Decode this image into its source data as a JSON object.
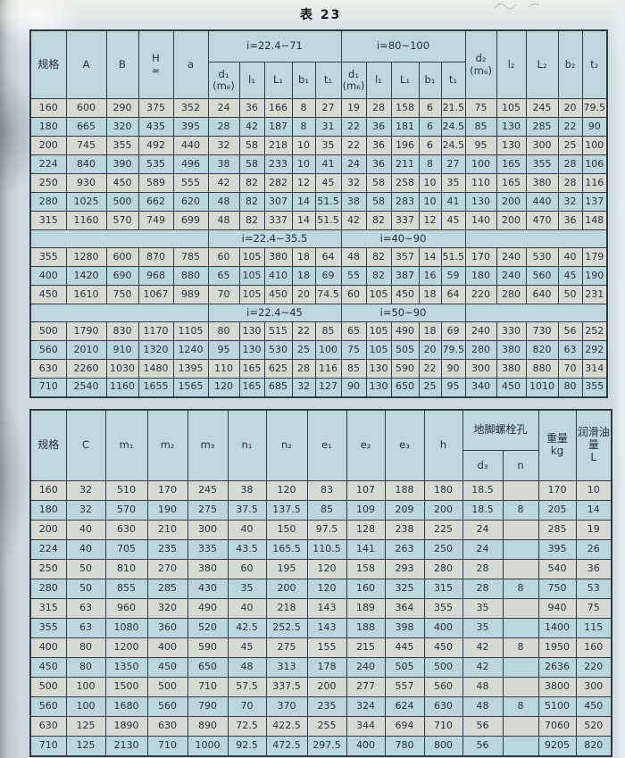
{
  "page": {
    "title": "表 23"
  },
  "colors": {
    "row_blue": "#bcd6e0",
    "row_grey": "#d6dad3",
    "header_blue": "#bfd8e0",
    "border": "#2e3a46",
    "paper": "#cfdce1",
    "ink": "#272f3b"
  },
  "table1": {
    "col_headers": {
      "spec": "规格",
      "A": "A",
      "B": "B",
      "H": "H\n≈",
      "a": "a",
      "group_low": "i=22.4~71",
      "group_high": "i=80~100",
      "input_shaft": [
        "d₁\n(m₆)",
        "l₁",
        "L₁",
        "b₁",
        "t₁",
        "d₁\n(m₆)",
        "l₁",
        "L₁",
        "b₁",
        "t₁"
      ],
      "output_shaft": [
        "d₂\n(m₆)",
        "l₂",
        "L₂",
        "b₂",
        "t₂"
      ]
    },
    "bands": [
      {
        "rows": [
          [
            "160",
            "600",
            "290",
            "375",
            "352",
            "24",
            "36",
            "166",
            "8",
            "27",
            "19",
            "28",
            "158",
            "6",
            "21.5",
            "75",
            "105",
            "245",
            "20",
            "79.5"
          ],
          [
            "180",
            "665",
            "320",
            "435",
            "395",
            "28",
            "42",
            "187",
            "8",
            "31",
            "22",
            "36",
            "181",
            "6",
            "24.5",
            "85",
            "130",
            "285",
            "22",
            "90"
          ],
          [
            "200",
            "745",
            "355",
            "492",
            "440",
            "32",
            "58",
            "218",
            "10",
            "35",
            "22",
            "36",
            "196",
            "6",
            "24.5",
            "95",
            "130",
            "300",
            "25",
            "100"
          ],
          [
            "224",
            "840",
            "390",
            "535",
            "496",
            "38",
            "58",
            "233",
            "10",
            "41",
            "24",
            "36",
            "211",
            "8",
            "27",
            "100",
            "165",
            "355",
            "28",
            "106"
          ],
          [
            "250",
            "930",
            "450",
            "589",
            "555",
            "42",
            "82",
            "282",
            "12",
            "45",
            "32",
            "58",
            "258",
            "10",
            "35",
            "110",
            "165",
            "380",
            "28",
            "116"
          ],
          [
            "280",
            "1025",
            "500",
            "662",
            "620",
            "48",
            "82",
            "307",
            "14",
            "51.5",
            "38",
            "58",
            "283",
            "10",
            "41",
            "130",
            "200",
            "440",
            "32",
            "137"
          ],
          [
            "315",
            "1160",
            "570",
            "749",
            "699",
            "48",
            "82",
            "337",
            "14",
            "51.5",
            "42",
            "82",
            "337",
            "12",
            "45",
            "140",
            "200",
            "470",
            "36",
            "148"
          ]
        ]
      },
      {
        "label_low": "i=22.4~35.5",
        "label_high": "i=40~90",
        "rows": [
          [
            "355",
            "1280",
            "600",
            "870",
            "785",
            "60",
            "105",
            "380",
            "18",
            "64",
            "48",
            "82",
            "357",
            "14",
            "51.5",
            "170",
            "240",
            "530",
            "40",
            "179"
          ],
          [
            "400",
            "1420",
            "690",
            "968",
            "880",
            "65",
            "105",
            "410",
            "18",
            "69",
            "55",
            "82",
            "387",
            "16",
            "59",
            "180",
            "240",
            "560",
            "45",
            "190"
          ],
          [
            "450",
            "1610",
            "750",
            "1067",
            "989",
            "70",
            "105",
            "450",
            "20",
            "74.5",
            "60",
            "105",
            "450",
            "18",
            "64",
            "220",
            "280",
            "640",
            "50",
            "231"
          ]
        ]
      },
      {
        "label_low": "i=22.4~45",
        "label_high": "i=50~90",
        "rows": [
          [
            "500",
            "1790",
            "830",
            "1170",
            "1105",
            "80",
            "130",
            "515",
            "22",
            "85",
            "65",
            "105",
            "490",
            "18",
            "69",
            "240",
            "330",
            "730",
            "56",
            "252"
          ],
          [
            "560",
            "2010",
            "910",
            "1320",
            "1240",
            "95",
            "130",
            "530",
            "25",
            "100",
            "75",
            "105",
            "505",
            "20",
            "79.5",
            "280",
            "380",
            "820",
            "63",
            "292"
          ],
          [
            "630",
            "2260",
            "1030",
            "1480",
            "1395",
            "110",
            "165",
            "625",
            "28",
            "116",
            "85",
            "130",
            "590",
            "22",
            "90",
            "300",
            "380",
            "880",
            "70",
            "314"
          ],
          [
            "710",
            "2540",
            "1160",
            "1655",
            "1565",
            "120",
            "165",
            "685",
            "32",
            "127",
            "90",
            "130",
            "650",
            "25",
            "95",
            "340",
            "450",
            "1010",
            "80",
            "355"
          ]
        ]
      }
    ]
  },
  "table2": {
    "col_headers": [
      "规格",
      "C",
      "m₁",
      "m₂",
      "m₃",
      "n₁",
      "n₂",
      "e₁",
      "e₂",
      "e₃",
      "h"
    ],
    "bolt_group_header": "地脚螺栓孔",
    "bolt_sub_headers": [
      "d₃",
      "n"
    ],
    "weight_header": "重量\nkg",
    "oil_header": "润滑油量\nL",
    "rows": [
      [
        "160",
        "32",
        "510",
        "170",
        "245",
        "38",
        "120",
        "83",
        "107",
        "188",
        "180",
        "18.5",
        "",
        "170",
        "10"
      ],
      [
        "180",
        "32",
        "570",
        "190",
        "275",
        "37.5",
        "137.5",
        "85",
        "109",
        "209",
        "200",
        "18.5",
        "8",
        "205",
        "14"
      ],
      [
        "200",
        "40",
        "630",
        "210",
        "300",
        "40",
        "150",
        "97.5",
        "128",
        "238",
        "225",
        "24",
        "",
        "285",
        "19"
      ],
      [
        "224",
        "40",
        "705",
        "235",
        "335",
        "43.5",
        "165.5",
        "110.5",
        "141",
        "263",
        "250",
        "24",
        "",
        "395",
        "26"
      ],
      [
        "250",
        "50",
        "810",
        "270",
        "380",
        "60",
        "195",
        "120",
        "158",
        "293",
        "280",
        "28",
        "",
        "540",
        "36"
      ],
      [
        "280",
        "50",
        "855",
        "285",
        "430",
        "35",
        "200",
        "120",
        "160",
        "325",
        "315",
        "28",
        "8",
        "750",
        "53"
      ],
      [
        "315",
        "63",
        "960",
        "320",
        "490",
        "40",
        "218",
        "143",
        "189",
        "364",
        "355",
        "35",
        "",
        "940",
        "75"
      ],
      [
        "355",
        "63",
        "1080",
        "360",
        "520",
        "42.5",
        "252.5",
        "143",
        "188",
        "398",
        "400",
        "35",
        "",
        "1400",
        "115"
      ],
      [
        "400",
        "80",
        "1200",
        "400",
        "590",
        "45",
        "275",
        "155",
        "215",
        "445",
        "450",
        "42",
        "8",
        "1950",
        "160"
      ],
      [
        "450",
        "80",
        "1350",
        "450",
        "650",
        "48",
        "313",
        "178",
        "240",
        "505",
        "500",
        "42",
        "",
        "2636",
        "220"
      ],
      [
        "500",
        "100",
        "1500",
        "500",
        "710",
        "57.5",
        "337.5",
        "200",
        "277",
        "557",
        "560",
        "48",
        "",
        "3800",
        "300"
      ],
      [
        "560",
        "100",
        "1680",
        "560",
        "790",
        "70",
        "370",
        "235",
        "324",
        "624",
        "630",
        "48",
        "8",
        "5100",
        "450"
      ],
      [
        "630",
        "125",
        "1890",
        "630",
        "890",
        "72.5",
        "422.5",
        "255",
        "344",
        "694",
        "710",
        "56",
        "",
        "7060",
        "520"
      ],
      [
        "710",
        "125",
        "2130",
        "710",
        "1000",
        "92.5",
        "472.5",
        "297.5",
        "400",
        "780",
        "800",
        "56",
        "",
        "9205",
        "820"
      ]
    ]
  }
}
